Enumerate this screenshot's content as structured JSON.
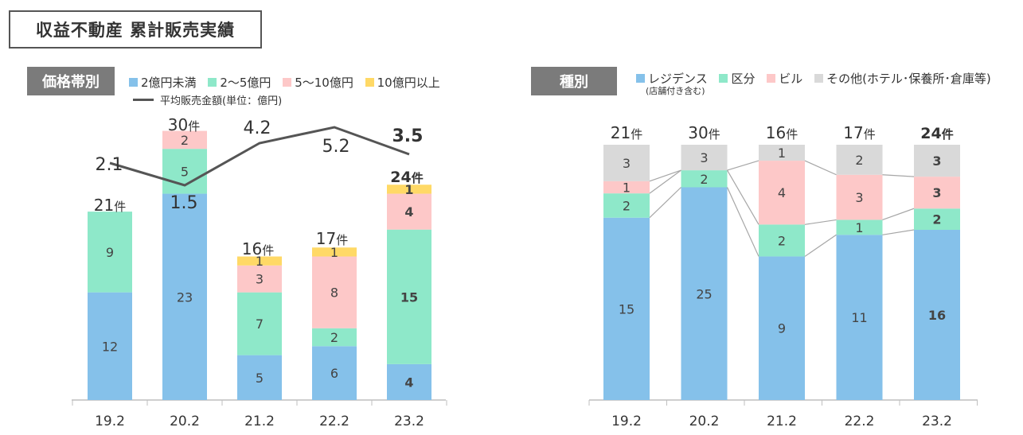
{
  "page_title": "収益不動産 累計販売実績",
  "colors": {
    "blue": "#85c1ea",
    "teal": "#8ee8c9",
    "pink": "#fdc8c8",
    "yellow": "#ffd966",
    "gray": "#d9d9d9",
    "avg_line": "#555555"
  },
  "chart_data": [
    {
      "type": "bar",
      "stacked": true,
      "panel_tag": "価格帯別",
      "categories": [
        "19.2",
        "20.2",
        "21.2",
        "22.2",
        "23.2"
      ],
      "series": [
        {
          "name": "2億円未満",
          "color": "blue",
          "values": [
            12,
            23,
            5,
            6,
            4
          ]
        },
        {
          "name": "2～5億円",
          "color": "teal",
          "values": [
            9,
            5,
            7,
            2,
            15
          ]
        },
        {
          "name": "5～10億円",
          "color": "pink",
          "values": [
            0,
            2,
            3,
            8,
            4
          ]
        },
        {
          "name": "10億円以上",
          "color": "yellow",
          "values": [
            0,
            0,
            1,
            1,
            1
          ]
        }
      ],
      "totals": [
        21,
        30,
        16,
        17,
        24
      ],
      "total_unit": "件",
      "line": {
        "name": "平均販売金額(単位：億円)",
        "values": [
          2.1,
          1.5,
          4.2,
          5.2,
          3.5
        ]
      },
      "highlight_last": true,
      "legend_position": "top"
    },
    {
      "type": "bar",
      "stacked": true,
      "normalized": true,
      "panel_tag": "種別",
      "categories": [
        "19.2",
        "20.2",
        "21.2",
        "22.2",
        "23.2"
      ],
      "series": [
        {
          "name": "レジデンス",
          "note": "(店舗付き含む)",
          "color": "blue",
          "values": [
            15,
            25,
            9,
            11,
            16
          ]
        },
        {
          "name": "区分",
          "color": "teal",
          "values": [
            2,
            2,
            2,
            1,
            2
          ]
        },
        {
          "name": "ビル",
          "color": "pink",
          "values": [
            1,
            0,
            4,
            3,
            3
          ]
        },
        {
          "name": "その他(ホテル･保養所･倉庫等)",
          "color": "gray",
          "values": [
            3,
            3,
            1,
            2,
            3
          ]
        }
      ],
      "totals": [
        21,
        30,
        16,
        17,
        24
      ],
      "total_unit": "件",
      "highlight_last": true,
      "legend_position": "top"
    }
  ]
}
